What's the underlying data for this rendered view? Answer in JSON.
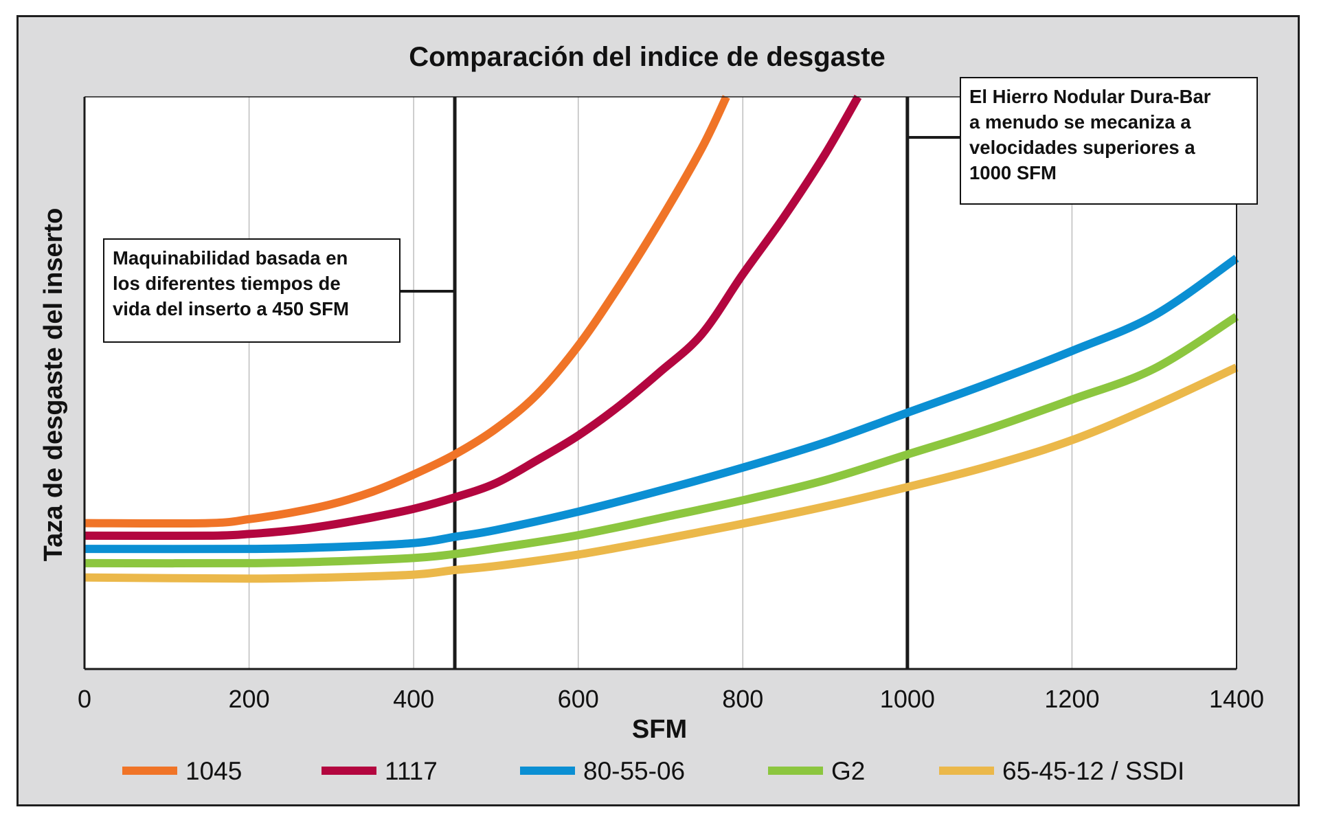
{
  "colors": {
    "background": "#dcdcdd",
    "plot": "#ffffff",
    "grid": "#bdbdbd",
    "frame": "#1e1e1e"
  },
  "chart_data": {
    "type": "line",
    "title": "Comparación del indice de desgaste",
    "xlabel": "SFM",
    "ylabel": "Taza de desgaste del inserto",
    "xlim": [
      0,
      1400
    ],
    "ylim": [
      0,
      100
    ],
    "xticks": [
      0,
      200,
      400,
      600,
      800,
      1000,
      1200,
      1400
    ],
    "grid": true,
    "legend_position": "bottom",
    "series": [
      {
        "name": "1045",
        "color": "#f07427",
        "x": [
          0,
          150,
          200,
          250,
          300,
          350,
          400,
          450,
          500,
          550,
          600,
          650,
          700,
          750,
          780
        ],
        "y": [
          25.5,
          25.5,
          26.2,
          27.3,
          28.8,
          31,
          34,
          37.5,
          42,
          48,
          56.5,
          67,
          78.5,
          91,
          100
        ]
      },
      {
        "name": "1117",
        "color": "#b3063f",
        "x": [
          0,
          150,
          200,
          250,
          300,
          350,
          400,
          450,
          500,
          550,
          600,
          650,
          700,
          750,
          800,
          850,
          900,
          940
        ],
        "y": [
          23.3,
          23.3,
          23.6,
          24.2,
          25.2,
          26.5,
          28,
          30,
          32.5,
          36.5,
          40.8,
          46,
          52,
          58.5,
          69,
          79,
          90,
          100
        ]
      },
      {
        "name": "80-55-06",
        "color": "#0b8fd3",
        "x": [
          0,
          200,
          300,
          400,
          450,
          500,
          600,
          700,
          800,
          900,
          1000,
          1100,
          1200,
          1300,
          1400
        ],
        "y": [
          21,
          21,
          21.3,
          22,
          23.1,
          24.3,
          27.5,
          31.2,
          35.2,
          39.6,
          44.8,
          50,
          55.6,
          61.8,
          71.8
        ]
      },
      {
        "name": "G2",
        "color": "#8cc63f",
        "x": [
          0,
          200,
          300,
          400,
          450,
          500,
          600,
          700,
          800,
          900,
          1000,
          1100,
          1200,
          1300,
          1400
        ],
        "y": [
          18.5,
          18.5,
          18.8,
          19.4,
          20.1,
          21.1,
          23.4,
          26.4,
          29.5,
          33,
          37.5,
          42,
          47.1,
          52.5,
          61.6
        ]
      },
      {
        "name": "65-45-12 / SSDI",
        "color": "#ebb84a",
        "x": [
          0,
          200,
          300,
          400,
          450,
          500,
          600,
          700,
          800,
          900,
          1000,
          1100,
          1200,
          1300,
          1400
        ],
        "y": [
          16,
          15.8,
          16,
          16.5,
          17.3,
          18,
          20,
          22.6,
          25.4,
          28.4,
          31.8,
          35.5,
          40,
          46,
          52.7
        ]
      }
    ],
    "reference_lines": [
      450,
      1000
    ],
    "annotations": [
      {
        "x": 450,
        "lines": [
          "Maquinabilidad basada en",
          "los diferentes tiempos de",
          "vida del inserto a 450 SFM"
        ]
      },
      {
        "x": 1000,
        "lines": [
          "El Hierro Nodular Dura-Bar",
          "a menudo se mecaniza a",
          "velocidades superiores a",
          "1000 SFM"
        ]
      }
    ]
  }
}
